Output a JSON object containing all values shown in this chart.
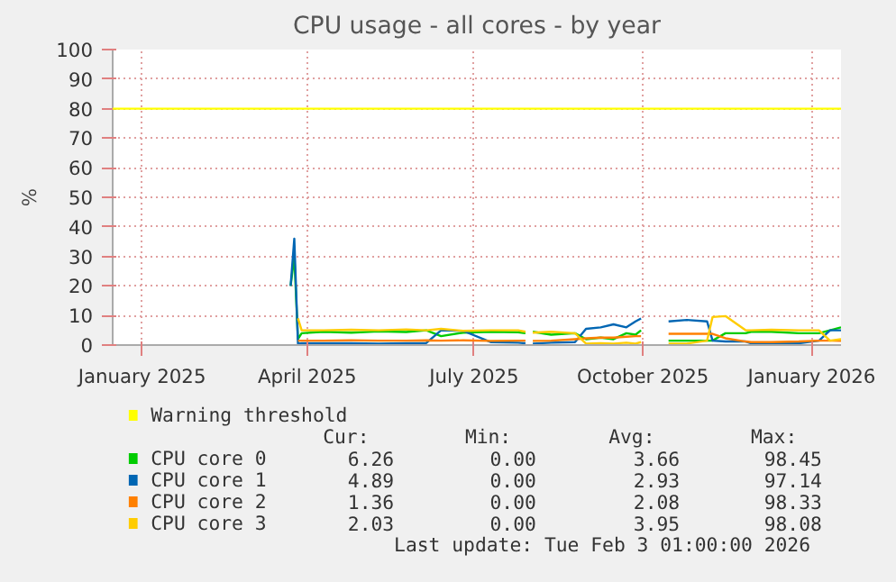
{
  "chart_data": {
    "type": "line",
    "title": "CPU usage - all cores - by year",
    "ylabel": "%",
    "x": [
      "2025-03-23",
      "2025-03-25",
      "2025-03-27",
      "2025-03-29",
      "2025-04-10",
      "2025-04-25",
      "2025-05-10",
      "2025-05-25",
      "2025-06-05",
      "2025-06-13",
      "2025-06-25",
      "2025-07-10",
      "2025-07-25",
      "2025-07-29",
      "2025-07-31",
      "2025-08-02",
      "2025-08-12",
      "2025-08-25",
      "2025-08-31",
      "2025-09-08",
      "2025-09-15",
      "2025-09-22",
      "2025-09-27",
      "2025-09-30",
      "2025-10-08",
      "2025-10-15",
      "2025-10-25",
      "2025-11-05",
      "2025-11-08",
      "2025-11-15",
      "2025-11-26",
      "2025-11-29",
      "2025-12-10",
      "2025-12-25",
      "2026-01-05",
      "2026-01-11",
      "2026-01-17"
    ],
    "series": [
      {
        "name": "CPU core 0",
        "color": "#00cc00",
        "values": [
          20,
          30,
          2,
          4,
          4.5,
          4.2,
          4.6,
          4.4,
          5,
          3,
          4.2,
          4.5,
          4.3,
          4,
          null,
          4.5,
          3.5,
          4,
          2,
          2.5,
          2,
          4,
          3.5,
          5,
          null,
          1.5,
          1.5,
          1.5,
          1.5,
          4,
          4,
          4.5,
          4.5,
          4,
          4,
          5,
          6
        ]
      },
      {
        "name": "CPU core 1",
        "color": "#0066b3",
        "values": [
          20,
          36,
          0.5,
          0.6,
          0.6,
          0.6,
          0.5,
          0.6,
          0.7,
          5,
          4.8,
          1,
          0.8,
          0.6,
          null,
          0.5,
          0.8,
          1,
          5.5,
          6,
          7,
          6,
          8,
          9,
          null,
          8,
          8.5,
          8,
          1.5,
          1.2,
          1.2,
          0.6,
          0.6,
          0.6,
          1.5,
          5,
          5
        ]
      },
      {
        "name": "CPU core 2",
        "color": "#ff8000",
        "values": [
          null,
          null,
          1.5,
          1.5,
          1.5,
          1.6,
          1.5,
          1.5,
          1.6,
          1.5,
          1.6,
          1.4,
          1.5,
          1.5,
          null,
          1.4,
          1.5,
          2,
          2.3,
          2.5,
          2.5,
          2.8,
          3,
          3,
          null,
          3.8,
          3.8,
          3.8,
          3.8,
          2.3,
          1.2,
          1,
          1,
          1.2,
          1.5,
          1.5,
          1.4
        ]
      },
      {
        "name": "CPU core 3",
        "color": "#ffcc00",
        "values": [
          null,
          null,
          9,
          5,
          5,
          5.2,
          5,
          5.3,
          5,
          5.5,
          4.8,
          5,
          5,
          4.5,
          null,
          4.2,
          4.5,
          4,
          0.5,
          0.6,
          0.5,
          0.8,
          0.5,
          1,
          null,
          0.5,
          0.5,
          1.5,
          9.5,
          9.8,
          5,
          5,
          5.2,
          5,
          5,
          1.5,
          2
        ]
      }
    ],
    "ref_lines": [
      {
        "axis": "y",
        "value": 80,
        "label": "Warning threshold",
        "color": "#ffff00"
      }
    ],
    "xlim": [
      "2024-12-16",
      "2026-01-17"
    ],
    "xticks": [
      {
        "value": "2025-01-01",
        "label": "January 2025"
      },
      {
        "value": "2025-04-01",
        "label": "April 2025"
      },
      {
        "value": "2025-07-01",
        "label": "July 2025"
      },
      {
        "value": "2025-10-01",
        "label": "October 2025"
      },
      {
        "value": "2026-01-01",
        "label": "January 2026"
      }
    ],
    "ylim": [
      0,
      100
    ],
    "yticks": [
      0,
      10,
      20,
      30,
      40,
      50,
      60,
      70,
      80,
      90,
      100
    ],
    "grid": true,
    "legend": "bottom",
    "annotations": [
      "Cur:",
      "Min:",
      "Avg:",
      "Max:",
      "6.26",
      "0.00",
      "3.66",
      "98.45",
      "4.89",
      "0.00",
      "2.93",
      "97.14",
      "1.36",
      "0.00",
      "2.08",
      "98.33",
      "2.03",
      "0.00",
      "3.95",
      "98.08",
      "Last update: Tue Feb  3 01:00:00 2026"
    ]
  }
}
